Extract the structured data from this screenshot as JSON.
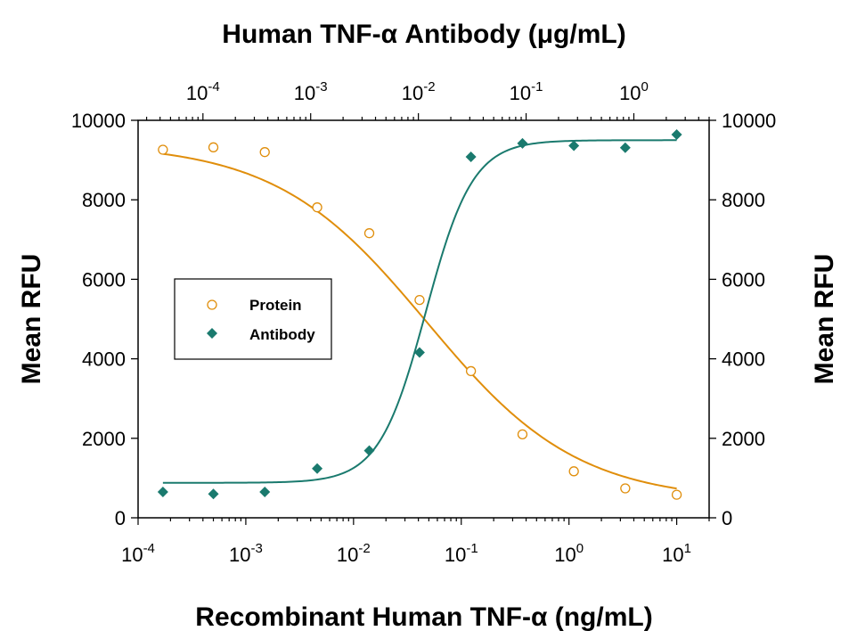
{
  "chart_data": {
    "type": "scatter",
    "title": "Human TNF-α Antibody (μg/mL)",
    "xlabel": "Recombinant Human TNF-α (ng/mL)",
    "ylabel": "Mean RFU",
    "ylabel_right": "Mean RFU",
    "x_scale": "log",
    "xlim": [
      0.0001,
      20
    ],
    "ylim": [
      0,
      10000
    ],
    "top_x_scale": "log",
    "top_xlim": [
      2.5e-05,
      5
    ],
    "grid": false,
    "legend_position": "middle-left",
    "x_ticks": [
      {
        "value": 0.0001,
        "base": "10",
        "exp": "-4"
      },
      {
        "value": 0.001,
        "base": "10",
        "exp": "-3"
      },
      {
        "value": 0.01,
        "base": "10",
        "exp": "-2"
      },
      {
        "value": 0.1,
        "base": "10",
        "exp": "-1"
      },
      {
        "value": 1,
        "base": "10",
        "exp": "0"
      },
      {
        "value": 10,
        "base": "10",
        "exp": "1"
      }
    ],
    "top_x_ticks": [
      {
        "value": 0.0001,
        "base": "10",
        "exp": "-4"
      },
      {
        "value": 0.001,
        "base": "10",
        "exp": "-3"
      },
      {
        "value": 0.01,
        "base": "10",
        "exp": "-2"
      },
      {
        "value": 0.1,
        "base": "10",
        "exp": "-1"
      },
      {
        "value": 1,
        "base": "10",
        "exp": "0"
      }
    ],
    "y_ticks": [
      "0",
      "2000",
      "4000",
      "6000",
      "8000",
      "10000"
    ],
    "y_tick_values": [
      0,
      2000,
      4000,
      6000,
      8000,
      10000
    ],
    "series": [
      {
        "name": "Protein",
        "marker": "open-circle",
        "color": "#E08E0B",
        "points": [
          {
            "x": 0.00017,
            "y": 9260
          },
          {
            "x": 0.0005,
            "y": 9320
          },
          {
            "x": 0.0015,
            "y": 9200
          },
          {
            "x": 0.0046,
            "y": 7810
          },
          {
            "x": 0.014,
            "y": 7160
          },
          {
            "x": 0.041,
            "y": 5480
          },
          {
            "x": 0.123,
            "y": 3690
          },
          {
            "x": 0.37,
            "y": 2100
          },
          {
            "x": 1.11,
            "y": 1170
          },
          {
            "x": 3.33,
            "y": 740
          },
          {
            "x": 10,
            "y": 580
          }
        ],
        "fit": {
          "bottom": 420,
          "top": 9420,
          "ec50": 0.048,
          "hill": -0.62
        }
      },
      {
        "name": "Antibody",
        "marker": "filled-diamond",
        "color": "#1A7A6E",
        "points": [
          {
            "x": 0.00017,
            "y": 650
          },
          {
            "x": 0.0005,
            "y": 600
          },
          {
            "x": 0.0015,
            "y": 650
          },
          {
            "x": 0.0046,
            "y": 1240
          },
          {
            "x": 0.014,
            "y": 1690
          },
          {
            "x": 0.041,
            "y": 4160
          },
          {
            "x": 0.123,
            "y": 9080
          },
          {
            "x": 0.37,
            "y": 9420
          },
          {
            "x": 1.11,
            "y": 9360
          },
          {
            "x": 3.33,
            "y": 9310
          },
          {
            "x": 10,
            "y": 9640
          }
        ],
        "fit": {
          "bottom": 880,
          "top": 9500,
          "ec50": 0.047,
          "hill": 2.0
        }
      }
    ]
  }
}
